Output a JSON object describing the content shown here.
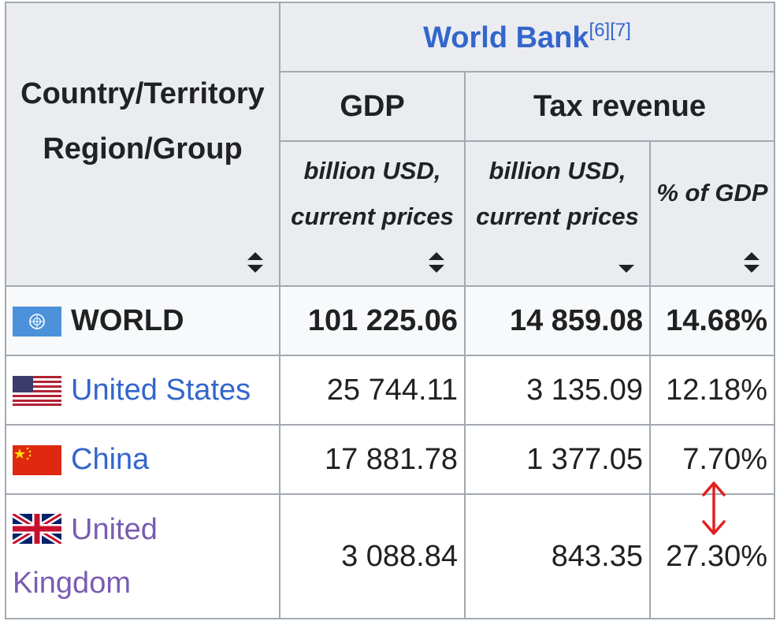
{
  "header": {
    "country_line1": "Country/Territory",
    "country_line2": "Region/Group",
    "source": "World Bank",
    "source_refs": "[6][7]",
    "gdp": "GDP",
    "tax_revenue": "Tax revenue",
    "unit_line1": "billion USD,",
    "unit_line2": "current prices",
    "pct_gdp": "% of GDP"
  },
  "rows": [
    {
      "flag": "un-flag-icon",
      "name": "WORLD",
      "gdp": "101 225.06",
      "tax": "14 859.08",
      "pct": "14.68%"
    },
    {
      "flag": "us-flag-icon",
      "name": "United States",
      "gdp": "25 744.11",
      "tax": "3 135.09",
      "pct": "12.18%"
    },
    {
      "flag": "china-flag-icon",
      "name": "China",
      "gdp": "17 881.78",
      "tax": "1 377.05",
      "pct": "7.70%"
    },
    {
      "flag": "uk-flag-icon",
      "name_line1": "United",
      "name_line2": "Kingdom",
      "gdp": "3 088.84",
      "tax": "843.35",
      "pct": "27.30%"
    }
  ],
  "colors": {
    "link": "#3366cc",
    "visited_link": "#795cb2",
    "header_bg": "#eaecf0",
    "border": "#a2a9b1",
    "annotation": "#e02020"
  }
}
